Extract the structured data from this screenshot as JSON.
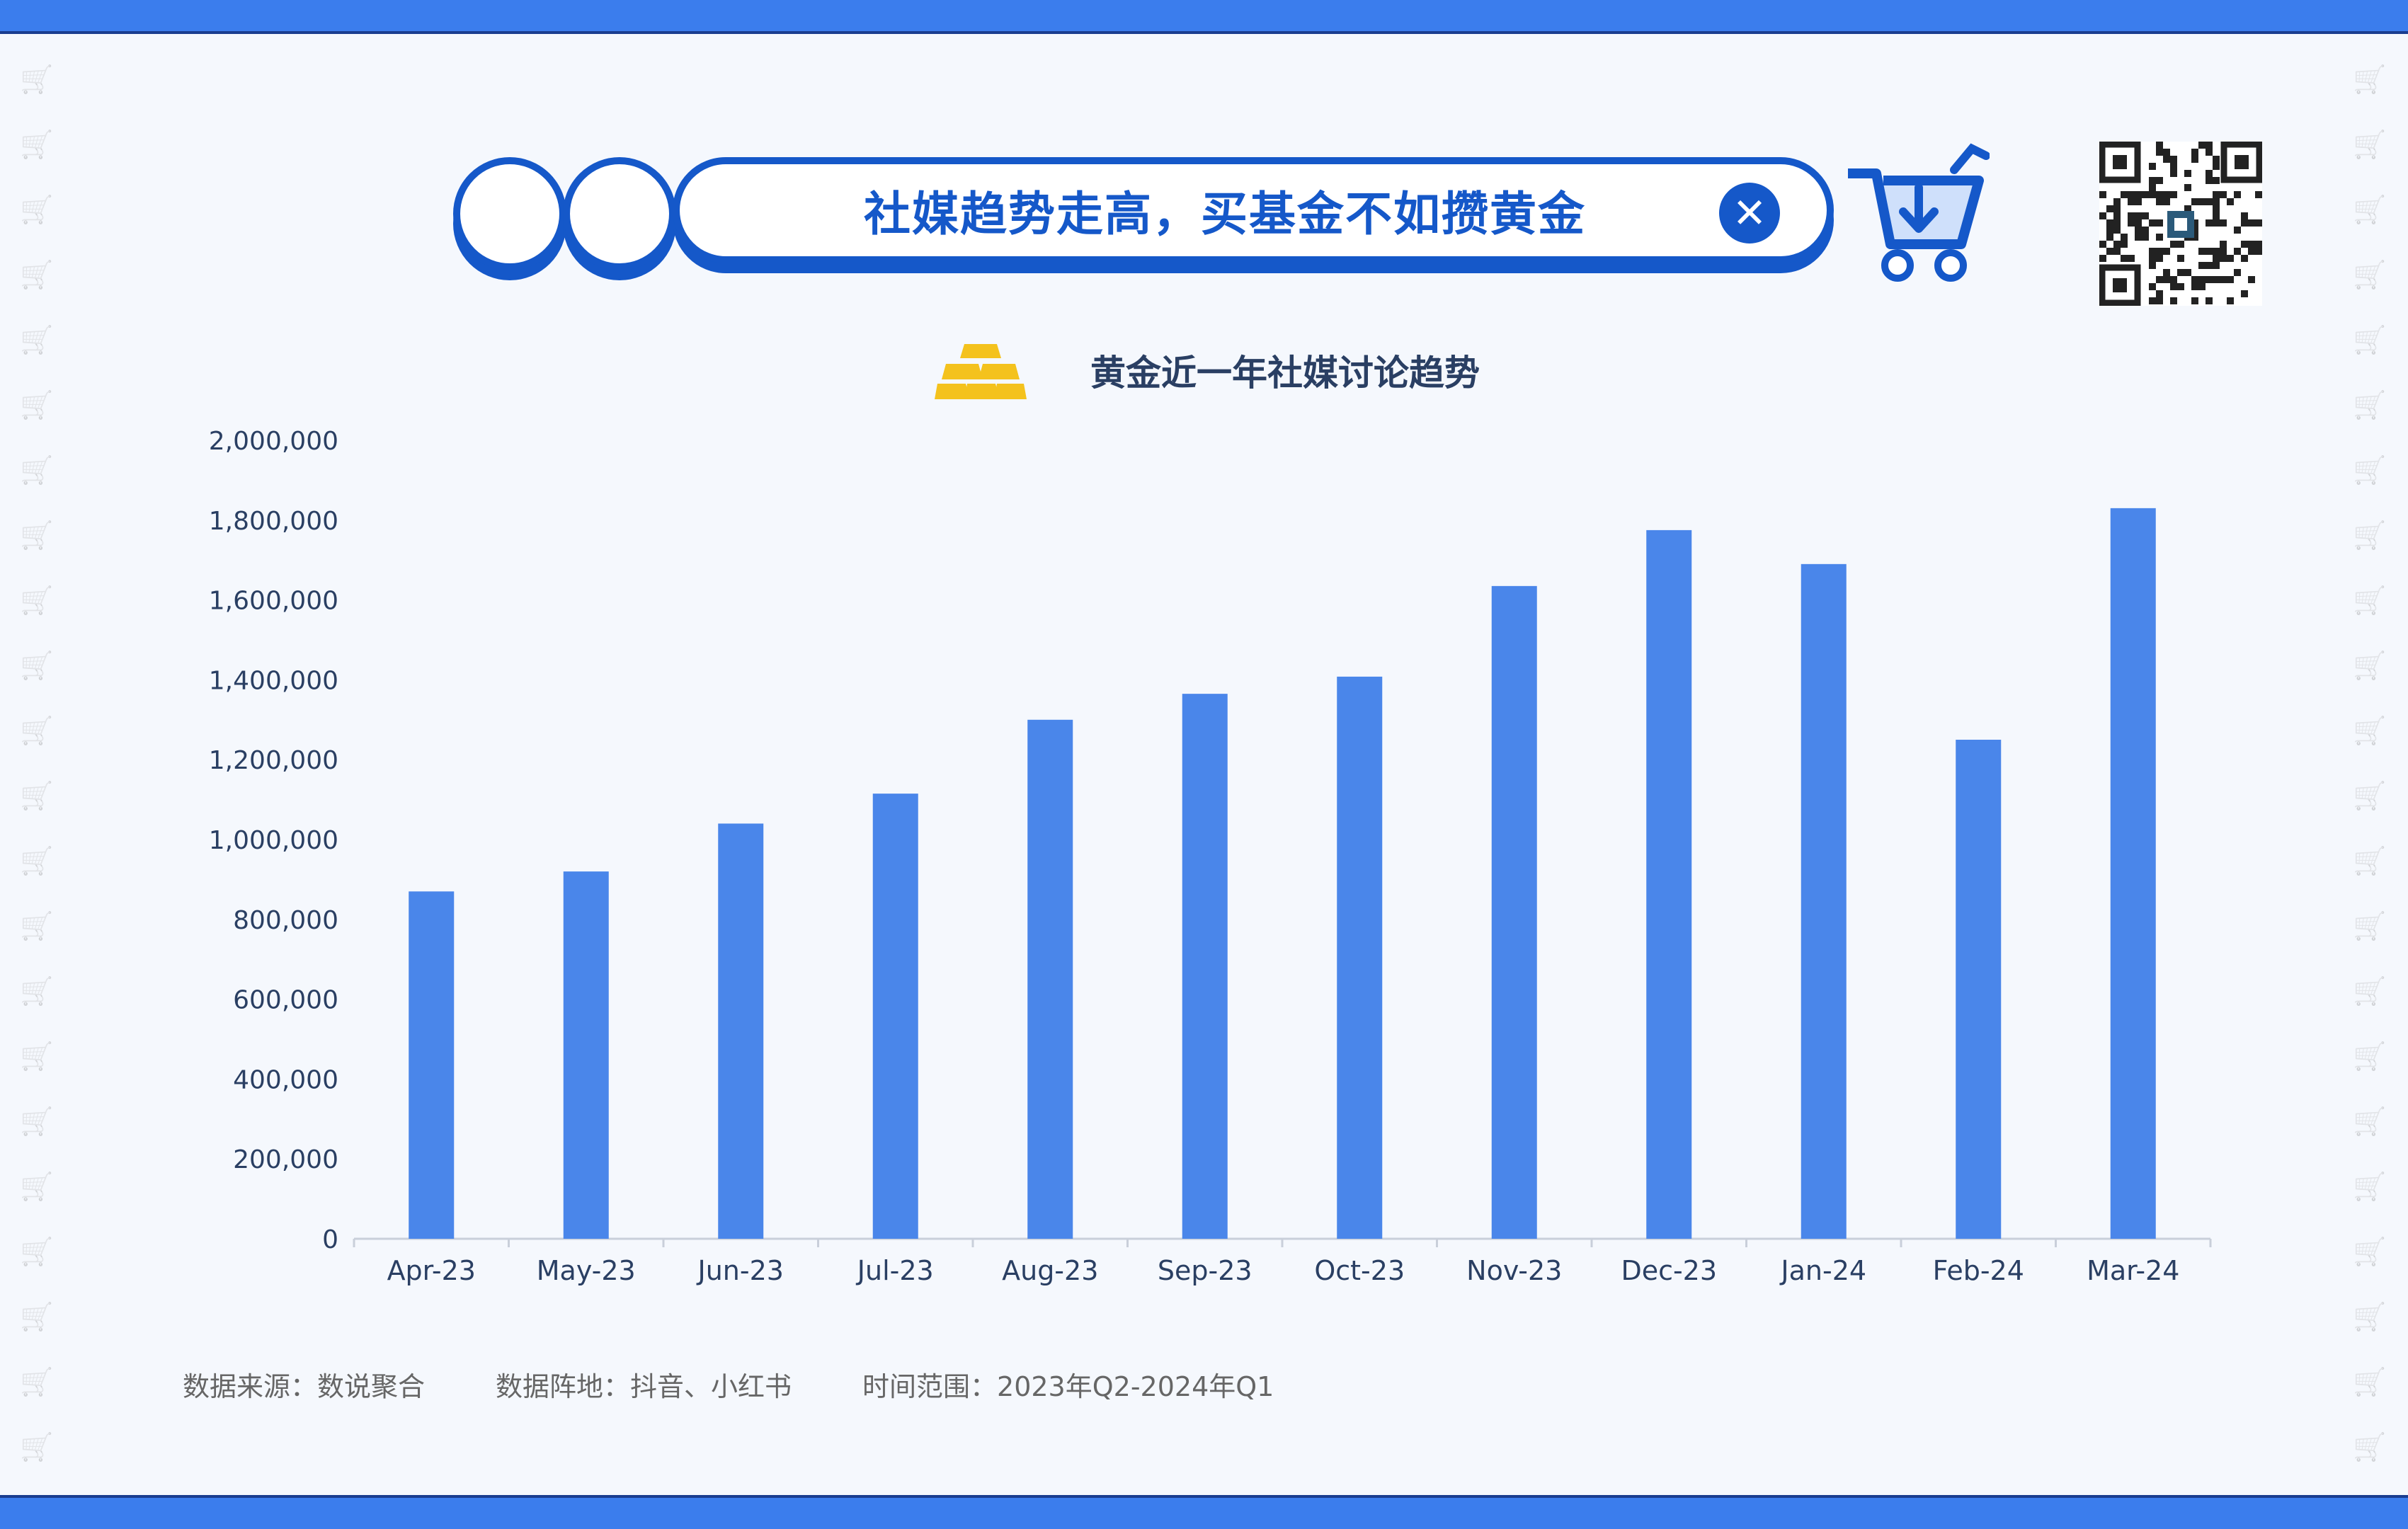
{
  "header": {
    "title": "社媒趋势走高，买基金不如攒黄金",
    "close_icon": "close-icon",
    "cart_icon": "shopping-cart-icon",
    "qr_icon": "qr-code-icon"
  },
  "colors": {
    "frame": "#3b7ded",
    "brand": "#1558c9",
    "bar": "#4a86ea",
    "gold": "#f4c21d"
  },
  "chart_data": {
    "type": "bar",
    "title": "黄金近一年社媒讨论趋势",
    "xlabel": "",
    "ylabel": "",
    "categories": [
      "Apr-23",
      "May-23",
      "Jun-23",
      "Jul-23",
      "Aug-23",
      "Sep-23",
      "Oct-23",
      "Nov-23",
      "Dec-23",
      "Jan-24",
      "Feb-24",
      "Mar-24"
    ],
    "values": [
      870000,
      920000,
      1040000,
      1115000,
      1300000,
      1365000,
      1408000,
      1635000,
      1775000,
      1690000,
      1250000,
      1830000
    ],
    "ylim": [
      0,
      2000000
    ],
    "yticks": [
      "0",
      "200,000",
      "400,000",
      "600,000",
      "800,000",
      "1,000,000",
      "1,200,000",
      "1,400,000",
      "1,600,000",
      "1,800,000",
      "2,000,000"
    ],
    "grid": false,
    "legend": "none"
  },
  "footer": {
    "source": "数据来源：数说聚合",
    "platforms": "数据阵地：抖音、小红书",
    "time_range": "时间范围：2023年Q2-2024年Q1"
  }
}
